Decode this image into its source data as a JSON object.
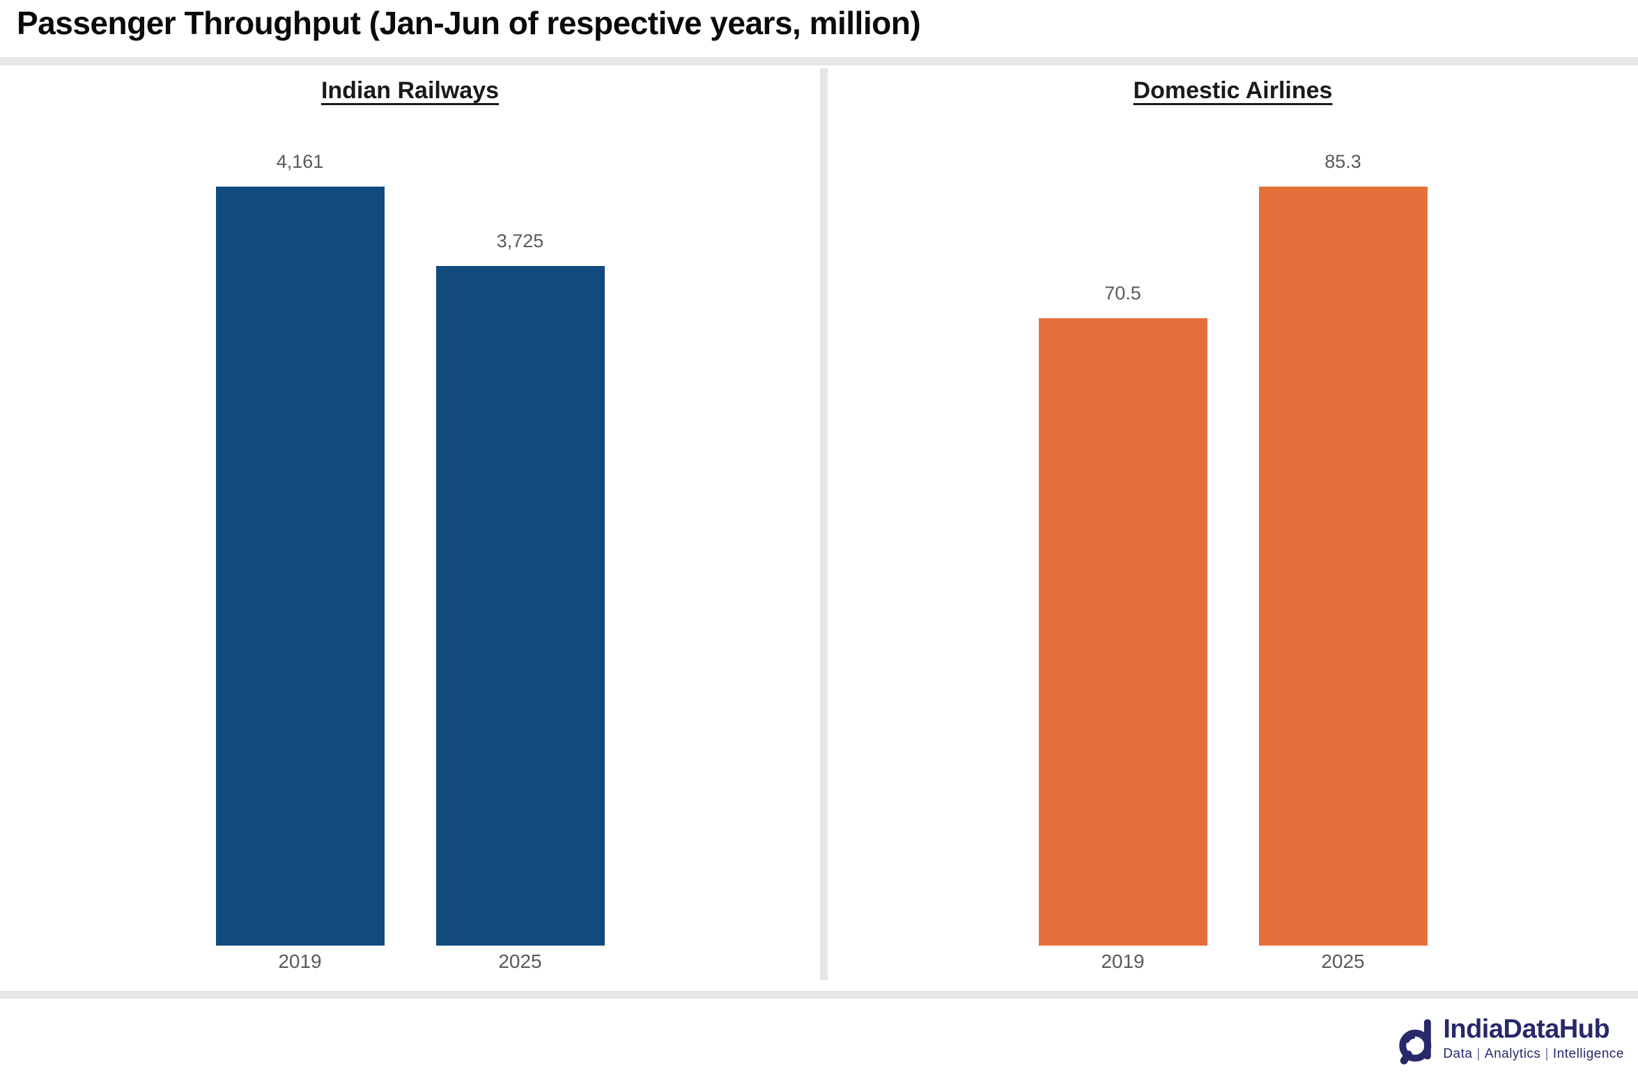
{
  "page": {
    "title": "Passenger Throughput (Jan-Jun of respective years, million)"
  },
  "chart_data": [
    {
      "type": "bar",
      "title": "Indian Railways",
      "categories": [
        "2019",
        "2025"
      ],
      "values": [
        4161,
        3725
      ],
      "value_labels": [
        "4,161",
        "3,725"
      ],
      "bar_color": "#114b7e",
      "xlabel": "",
      "ylabel": "",
      "ylim": [
        0,
        4161
      ],
      "grid": false,
      "legend": false,
      "value_labels_position": "above-bar"
    },
    {
      "type": "bar",
      "title": "Domestic Airlines",
      "categories": [
        "2019",
        "2025"
      ],
      "values": [
        70.5,
        85.3
      ],
      "value_labels": [
        "70.5",
        "85.3"
      ],
      "bar_color": "#e56f3a",
      "xlabel": "",
      "ylabel": "",
      "ylim": [
        0,
        85.3
      ],
      "grid": false,
      "legend": false,
      "value_labels_position": "above-bar"
    }
  ],
  "branding": {
    "name": "IndiaDataHub",
    "tagline_parts": [
      "Data",
      "Analytics",
      "Intelligence"
    ],
    "tagline_separator": "|",
    "color": "#28286b"
  },
  "colors": {
    "railways_blue": "#114b7e",
    "airlines_orange": "#e56f3a",
    "divider_gray": "#e6e6e6",
    "label_gray": "#595959",
    "title_black": "#0a0a0a"
  }
}
